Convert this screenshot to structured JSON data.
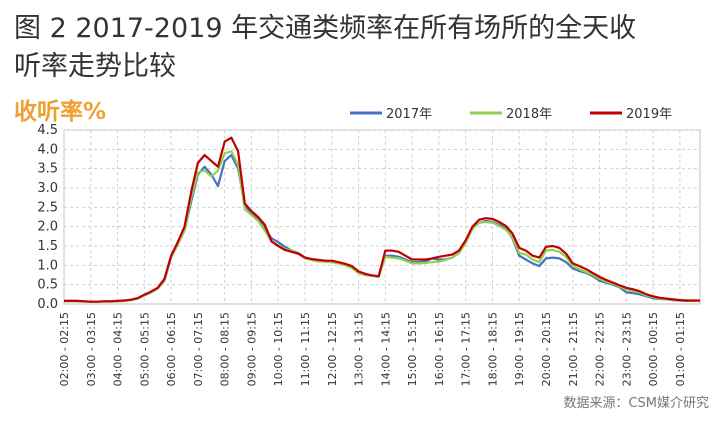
{
  "page": {
    "title_line1": "图 2 2017-2019 年交通类频率在所有场所的全天收",
    "title_line2": "听率走势比较",
    "source": "数据来源：CSM媒介研究"
  },
  "chart_data": {
    "type": "line",
    "title": "图 2 2017-2019 年交通类频率在所有场所的全天收听率走势比较",
    "ylabel": "收听率%",
    "xlabel": "",
    "ylim": [
      0,
      4.5
    ],
    "yticks": [
      "0.0",
      "0.5",
      "1.0",
      "1.5",
      "2.0",
      "2.5",
      "3.0",
      "3.5",
      "4.0",
      "4.5"
    ],
    "grid": true,
    "legend": "top-right",
    "x": [
      "02:00 - 02:15",
      "02:15 - 02:30",
      "02:30 - 02:45",
      "02:45 - 03:00",
      "03:00 - 03:15",
      "03:15 - 03:30",
      "03:30 - 03:45",
      "03:45 - 04:00",
      "04:00 - 04:15",
      "04:15 - 04:30",
      "04:30 - 04:45",
      "04:45 - 05:00",
      "05:00 - 05:15",
      "05:15 - 05:30",
      "05:30 - 05:45",
      "05:45 - 06:00",
      "06:00 - 06:15",
      "06:15 - 06:30",
      "06:30 - 06:45",
      "06:45 - 07:00",
      "07:00 - 07:15",
      "07:15 - 07:30",
      "07:30 - 07:45",
      "07:45 - 08:00",
      "08:00 - 08:15",
      "08:15 - 08:30",
      "08:30 - 08:45",
      "08:45 - 09:00",
      "09:00 - 09:15",
      "09:15 - 09:30",
      "09:30 - 09:45",
      "09:45 - 10:00",
      "10:00 - 10:15",
      "10:15 - 10:30",
      "10:30 - 10:45",
      "10:45 - 11:00",
      "11:00 - 11:15",
      "11:15 - 11:30",
      "11:30 - 11:45",
      "11:45 - 12:00",
      "12:00 - 12:15",
      "12:15 - 12:30",
      "12:30 - 12:45",
      "12:45 - 13:00",
      "13:00 - 13:15",
      "13:15 - 13:30",
      "13:30 - 13:45",
      "13:45 - 14:00",
      "14:00 - 14:15",
      "14:15 - 14:30",
      "14:30 - 14:45",
      "14:45 - 15:00",
      "15:00 - 15:15",
      "15:15 - 15:30",
      "15:30 - 15:45",
      "15:45 - 16:00",
      "16:00 - 16:15",
      "16:15 - 16:30",
      "16:30 - 16:45",
      "16:45 - 17:00",
      "17:00 - 17:15",
      "17:15 - 17:30",
      "17:30 - 17:45",
      "17:45 - 18:00",
      "18:00 - 18:15",
      "18:15 - 18:30",
      "18:30 - 18:45",
      "18:45 - 19:00",
      "19:00 - 19:15",
      "19:15 - 19:30",
      "19:30 - 19:45",
      "19:45 - 20:00",
      "20:00 - 20:15",
      "20:15 - 20:30",
      "20:30 - 20:45",
      "20:45 - 21:00",
      "21:00 - 21:15",
      "21:15 - 21:30",
      "21:30 - 21:45",
      "21:45 - 22:00",
      "22:00 - 22:15",
      "22:15 - 22:30",
      "22:30 - 22:45",
      "22:45 - 23:00",
      "23:00 - 23:15",
      "23:15 - 23:30",
      "23:30 - 23:45",
      "23:45 - 24:00",
      "00:00 - 00:15",
      "00:15 - 00:30",
      "00:30 - 00:45",
      "00:45 - 01:00",
      "01:00 - 01:15",
      "01:15 - 01:30",
      "01:30 - 01:45",
      "01:45 - 02:00"
    ],
    "xtick_labels": [
      "02:00 - 02:15",
      "03:00 - 03:15",
      "04:00 - 04:15",
      "05:00 - 05:15",
      "06:00 - 06:15",
      "07:00 - 07:15",
      "08:00 - 08:15",
      "09:00 - 09:15",
      "10:00 - 10:15",
      "11:00 - 11:15",
      "12:00 - 12:15",
      "13:00 - 13:15",
      "14:00 - 14:15",
      "15:00 - 15:15",
      "16:00 - 16:15",
      "17:00 - 17:15",
      "18:00 - 18:15",
      "19:00 - 19:15",
      "20:00 - 20:15",
      "21:00 - 21:15",
      "22:00 - 22:15",
      "23:00 - 23:15",
      "00:00 - 00:15",
      "01:00 - 01:15"
    ],
    "series": [
      {
        "name": "2017年",
        "color": "#4472c4",
        "values": [
          0.08,
          0.08,
          0.08,
          0.07,
          0.06,
          0.06,
          0.07,
          0.07,
          0.07,
          0.08,
          0.1,
          0.14,
          0.22,
          0.3,
          0.4,
          0.6,
          1.2,
          1.55,
          1.9,
          2.65,
          3.35,
          3.55,
          3.35,
          3.05,
          3.7,
          3.85,
          3.5,
          2.55,
          2.35,
          2.2,
          1.95,
          1.7,
          1.6,
          1.48,
          1.38,
          1.32,
          1.2,
          1.16,
          1.12,
          1.1,
          1.1,
          1.06,
          1.02,
          0.95,
          0.8,
          0.75,
          0.73,
          0.7,
          1.25,
          1.25,
          1.22,
          1.15,
          1.08,
          1.08,
          1.1,
          1.18,
          1.15,
          1.15,
          1.2,
          1.32,
          1.6,
          1.95,
          2.1,
          2.15,
          2.12,
          2.05,
          1.95,
          1.7,
          1.25,
          1.15,
          1.05,
          0.98,
          1.18,
          1.2,
          1.18,
          1.08,
          0.92,
          0.85,
          0.8,
          0.72,
          0.6,
          0.55,
          0.5,
          0.43,
          0.3,
          0.28,
          0.25,
          0.2,
          0.15,
          0.13,
          0.12,
          0.1,
          0.09,
          0.08,
          0.08,
          0.08
        ]
      },
      {
        "name": "2018年",
        "color": "#92d050",
        "values": [
          0.07,
          0.07,
          0.07,
          0.06,
          0.06,
          0.06,
          0.06,
          0.06,
          0.07,
          0.08,
          0.1,
          0.14,
          0.22,
          0.3,
          0.4,
          0.62,
          1.22,
          1.55,
          1.9,
          2.75,
          3.4,
          3.45,
          3.3,
          3.45,
          3.9,
          3.95,
          3.6,
          2.45,
          2.3,
          2.15,
          1.9,
          1.62,
          1.52,
          1.42,
          1.38,
          1.3,
          1.18,
          1.14,
          1.1,
          1.1,
          1.08,
          1.05,
          1.0,
          0.93,
          0.8,
          0.76,
          0.73,
          0.7,
          1.22,
          1.2,
          1.18,
          1.12,
          1.05,
          1.05,
          1.06,
          1.08,
          1.1,
          1.14,
          1.2,
          1.32,
          1.58,
          1.95,
          2.1,
          2.12,
          2.1,
          2.02,
          1.92,
          1.72,
          1.32,
          1.28,
          1.15,
          1.08,
          1.38,
          1.4,
          1.35,
          1.22,
          0.98,
          0.9,
          0.82,
          0.75,
          0.65,
          0.58,
          0.52,
          0.45,
          0.38,
          0.33,
          0.3,
          0.22,
          0.18,
          0.14,
          0.12,
          0.11,
          0.1,
          0.09,
          0.08,
          0.08
        ]
      },
      {
        "name": "2019年",
        "color": "#c00000",
        "values": [
          0.08,
          0.08,
          0.08,
          0.07,
          0.06,
          0.06,
          0.07,
          0.07,
          0.08,
          0.09,
          0.11,
          0.15,
          0.24,
          0.32,
          0.42,
          0.65,
          1.25,
          1.6,
          2.0,
          2.9,
          3.65,
          3.85,
          3.7,
          3.55,
          4.2,
          4.3,
          3.95,
          2.6,
          2.4,
          2.25,
          2.05,
          1.62,
          1.5,
          1.4,
          1.35,
          1.3,
          1.2,
          1.16,
          1.14,
          1.12,
          1.12,
          1.08,
          1.04,
          0.98,
          0.84,
          0.78,
          0.74,
          0.72,
          1.38,
          1.38,
          1.35,
          1.25,
          1.15,
          1.15,
          1.15,
          1.18,
          1.22,
          1.25,
          1.28,
          1.38,
          1.65,
          2.0,
          2.18,
          2.22,
          2.2,
          2.12,
          2.02,
          1.82,
          1.45,
          1.38,
          1.25,
          1.2,
          1.48,
          1.5,
          1.45,
          1.3,
          1.05,
          0.98,
          0.9,
          0.8,
          0.7,
          0.62,
          0.55,
          0.48,
          0.42,
          0.38,
          0.33,
          0.25,
          0.2,
          0.16,
          0.14,
          0.12,
          0.1,
          0.09,
          0.09,
          0.09
        ]
      }
    ]
  }
}
